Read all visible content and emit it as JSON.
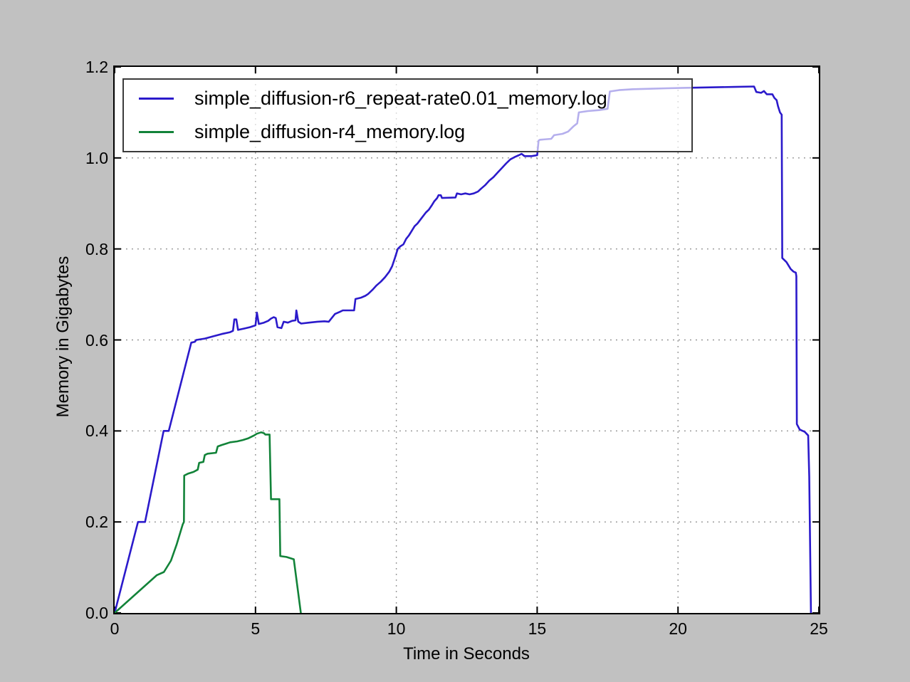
{
  "figure": {
    "background_color": "#c1c1c1",
    "plot_background_color": "#ffffff",
    "spine_color": "#000000",
    "grid_color": "#8a8a8a",
    "legend_border_color": "#3b3b3b",
    "legend_face_color": "rgba(255,255,255,0.65)"
  },
  "chart_data": {
    "type": "line",
    "title": "",
    "xlabel": "Time in Seconds",
    "ylabel": "Memory in Gigabytes",
    "xlim": [
      0,
      25
    ],
    "ylim": [
      0,
      1.2
    ],
    "xticks": [
      0,
      5,
      10,
      15,
      20,
      25
    ],
    "xtick_labels": [
      "0",
      "5",
      "10",
      "15",
      "20",
      "25"
    ],
    "yticks": [
      0,
      0.2,
      0.4,
      0.6,
      0.8,
      1.0,
      1.2
    ],
    "ytick_labels": [
      "0.0",
      "0.2",
      "0.4",
      "0.6",
      "0.8",
      "1.0",
      "1.2"
    ],
    "grid": "dotted",
    "legend": {
      "position": "upper left",
      "entries": [
        {
          "label": "simple_diffusion-r6_repeat-rate0.01_memory.log",
          "color": "#2b1acb"
        },
        {
          "label": "simple_diffusion-r4_memory.log",
          "color": "#128339"
        }
      ]
    },
    "series": [
      {
        "name": "simple_diffusion-r6_repeat-rate0.01_memory.log",
        "color": "#2b1acb",
        "points": [
          [
            0,
            0
          ],
          [
            0.83,
            0.2
          ],
          [
            1.08,
            0.2
          ],
          [
            1.74,
            0.4
          ],
          [
            1.92,
            0.4
          ],
          [
            2.72,
            0.594
          ],
          [
            2.85,
            0.596
          ],
          [
            2.9,
            0.6
          ],
          [
            3.2,
            0.603
          ],
          [
            3.5,
            0.608
          ],
          [
            3.8,
            0.613
          ],
          [
            4.1,
            0.617
          ],
          [
            4.2,
            0.62
          ],
          [
            4.25,
            0.645
          ],
          [
            4.32,
            0.645
          ],
          [
            4.38,
            0.622
          ],
          [
            4.6,
            0.625
          ],
          [
            4.8,
            0.628
          ],
          [
            5.0,
            0.632
          ],
          [
            5.05,
            0.66
          ],
          [
            5.12,
            0.635
          ],
          [
            5.3,
            0.638
          ],
          [
            5.45,
            0.642
          ],
          [
            5.55,
            0.647
          ],
          [
            5.65,
            0.65
          ],
          [
            5.72,
            0.648
          ],
          [
            5.78,
            0.628
          ],
          [
            5.92,
            0.626
          ],
          [
            6.0,
            0.64
          ],
          [
            6.15,
            0.638
          ],
          [
            6.3,
            0.642
          ],
          [
            6.42,
            0.643
          ],
          [
            6.45,
            0.665
          ],
          [
            6.52,
            0.64
          ],
          [
            6.62,
            0.636
          ],
          [
            6.9,
            0.638
          ],
          [
            7.2,
            0.64
          ],
          [
            7.45,
            0.641
          ],
          [
            7.6,
            0.64
          ],
          [
            7.82,
            0.657
          ],
          [
            8.0,
            0.662
          ],
          [
            8.1,
            0.665
          ],
          [
            8.5,
            0.665
          ],
          [
            8.55,
            0.69
          ],
          [
            8.75,
            0.693
          ],
          [
            8.9,
            0.697
          ],
          [
            9.0,
            0.701
          ],
          [
            9.15,
            0.71
          ],
          [
            9.3,
            0.72
          ],
          [
            9.45,
            0.728
          ],
          [
            9.6,
            0.738
          ],
          [
            9.75,
            0.75
          ],
          [
            9.85,
            0.762
          ],
          [
            9.95,
            0.78
          ],
          [
            10.05,
            0.8
          ],
          [
            10.15,
            0.806
          ],
          [
            10.25,
            0.81
          ],
          [
            10.35,
            0.822
          ],
          [
            10.45,
            0.83
          ],
          [
            10.55,
            0.84
          ],
          [
            10.65,
            0.85
          ],
          [
            10.75,
            0.856
          ],
          [
            10.85,
            0.864
          ],
          [
            10.95,
            0.872
          ],
          [
            11.05,
            0.88
          ],
          [
            11.15,
            0.886
          ],
          [
            11.25,
            0.895
          ],
          [
            11.35,
            0.905
          ],
          [
            11.45,
            0.912
          ],
          [
            11.5,
            0.918
          ],
          [
            11.58,
            0.918
          ],
          [
            11.62,
            0.912
          ],
          [
            12.1,
            0.913
          ],
          [
            12.15,
            0.922
          ],
          [
            12.3,
            0.92
          ],
          [
            12.45,
            0.922
          ],
          [
            12.6,
            0.92
          ],
          [
            12.75,
            0.922
          ],
          [
            12.9,
            0.926
          ],
          [
            13.0,
            0.932
          ],
          [
            13.15,
            0.94
          ],
          [
            13.3,
            0.95
          ],
          [
            13.45,
            0.958
          ],
          [
            13.6,
            0.968
          ],
          [
            13.75,
            0.978
          ],
          [
            13.9,
            0.988
          ],
          [
            14.05,
            0.997
          ],
          [
            14.2,
            1.002
          ],
          [
            14.35,
            1.006
          ],
          [
            14.45,
            1.009
          ],
          [
            14.55,
            1.004
          ],
          [
            14.8,
            1.004
          ],
          [
            15.0,
            1.006
          ],
          [
            15.05,
            1.038
          ],
          [
            15.1,
            1.04
          ],
          [
            15.5,
            1.042
          ],
          [
            15.6,
            1.05
          ],
          [
            15.9,
            1.053
          ],
          [
            16.1,
            1.058
          ],
          [
            16.3,
            1.07
          ],
          [
            16.42,
            1.076
          ],
          [
            16.48,
            1.1
          ],
          [
            16.8,
            1.103
          ],
          [
            17.2,
            1.105
          ],
          [
            17.5,
            1.108
          ],
          [
            17.58,
            1.146
          ],
          [
            17.9,
            1.149
          ],
          [
            18.4,
            1.151
          ],
          [
            19.0,
            1.152
          ],
          [
            19.6,
            1.153
          ],
          [
            20.2,
            1.154
          ],
          [
            21.0,
            1.155
          ],
          [
            22.0,
            1.156
          ],
          [
            22.7,
            1.157
          ],
          [
            22.78,
            1.145
          ],
          [
            22.95,
            1.143
          ],
          [
            23.05,
            1.147
          ],
          [
            23.15,
            1.14
          ],
          [
            23.35,
            1.14
          ],
          [
            23.42,
            1.132
          ],
          [
            23.5,
            1.127
          ],
          [
            23.55,
            1.114
          ],
          [
            23.62,
            1.1
          ],
          [
            23.68,
            1.095
          ],
          [
            23.7,
            0.78
          ],
          [
            23.85,
            0.771
          ],
          [
            24.0,
            0.756
          ],
          [
            24.1,
            0.75
          ],
          [
            24.18,
            0.748
          ],
          [
            24.2,
            0.74
          ],
          [
            24.22,
            0.415
          ],
          [
            24.32,
            0.403
          ],
          [
            24.5,
            0.398
          ],
          [
            24.62,
            0.39
          ],
          [
            24.66,
            0.3
          ],
          [
            24.72,
            0
          ]
        ]
      },
      {
        "name": "simple_diffusion-r4_memory.log",
        "color": "#128339",
        "points": [
          [
            0,
            0
          ],
          [
            1.5,
            0.083
          ],
          [
            1.75,
            0.09
          ],
          [
            2.0,
            0.115
          ],
          [
            2.2,
            0.15
          ],
          [
            2.42,
            0.195
          ],
          [
            2.46,
            0.2
          ],
          [
            2.47,
            0.302
          ],
          [
            2.6,
            0.306
          ],
          [
            2.8,
            0.31
          ],
          [
            2.95,
            0.315
          ],
          [
            3.0,
            0.33
          ],
          [
            3.15,
            0.332
          ],
          [
            3.2,
            0.347
          ],
          [
            3.3,
            0.35
          ],
          [
            3.6,
            0.352
          ],
          [
            3.66,
            0.366
          ],
          [
            3.8,
            0.369
          ],
          [
            3.95,
            0.372
          ],
          [
            4.1,
            0.375
          ],
          [
            4.35,
            0.377
          ],
          [
            4.55,
            0.38
          ],
          [
            4.75,
            0.384
          ],
          [
            4.95,
            0.39
          ],
          [
            5.05,
            0.394
          ],
          [
            5.2,
            0.397
          ],
          [
            5.3,
            0.395
          ],
          [
            5.35,
            0.392
          ],
          [
            5.5,
            0.392
          ],
          [
            5.55,
            0.25
          ],
          [
            5.85,
            0.25
          ],
          [
            5.88,
            0.125
          ],
          [
            6.1,
            0.123
          ],
          [
            6.36,
            0.118
          ],
          [
            6.61,
            0
          ]
        ]
      }
    ]
  }
}
